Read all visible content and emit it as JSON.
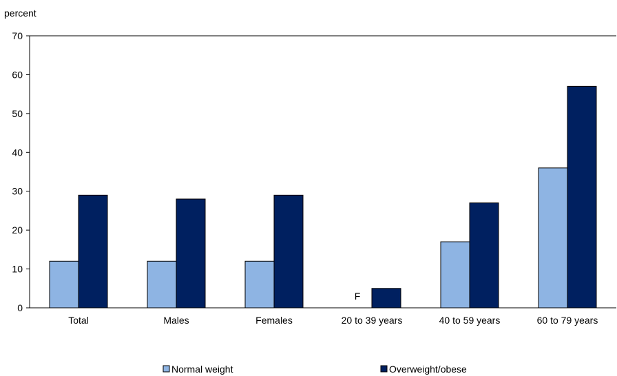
{
  "chart_data": {
    "type": "bar",
    "ylabel": "percent",
    "ylim": [
      0,
      70
    ],
    "yticks": [
      0,
      10,
      20,
      30,
      40,
      50,
      60,
      70
    ],
    "categories": [
      "Total",
      "Males",
      "Females",
      "20 to 39 years",
      "40 to 59 years",
      "60 to 79 years"
    ],
    "series": [
      {
        "name": "Normal weight",
        "color": "#8EB4E3",
        "values": [
          12,
          12,
          12,
          null,
          17,
          36
        ],
        "annotations": [
          "",
          "",
          "",
          "F",
          "",
          ""
        ]
      },
      {
        "name": "Overweight/obese",
        "color": "#002060",
        "values": [
          29,
          28,
          29,
          5,
          27,
          57
        ],
        "annotations": [
          "",
          "",
          "",
          "",
          "",
          ""
        ]
      }
    ],
    "grid": false,
    "legend": "bottom"
  }
}
